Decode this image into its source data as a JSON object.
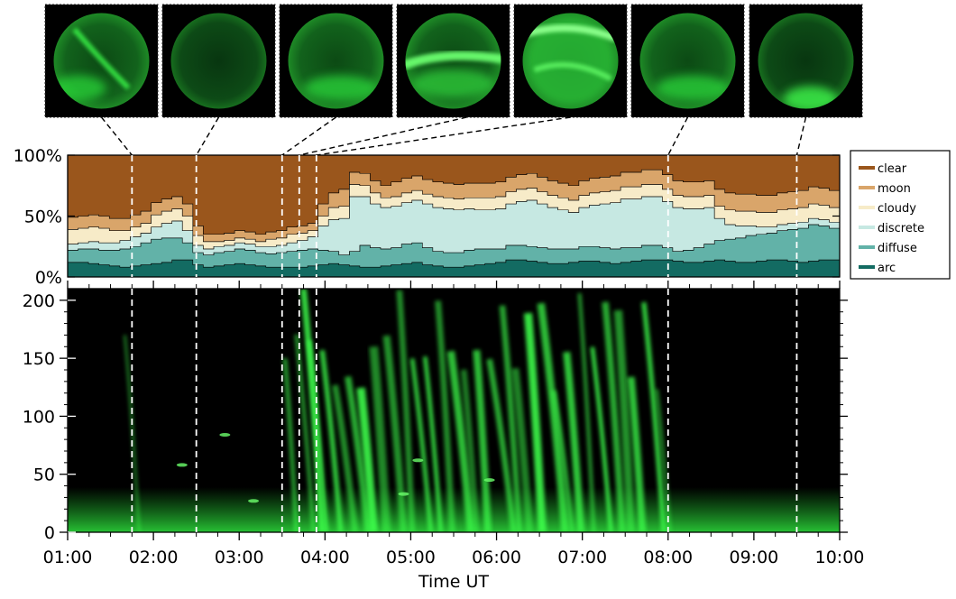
{
  "chart_data": [
    {
      "type": "image",
      "description_items": [
        "all-sky image",
        "all-sky image",
        "all-sky image",
        "all-sky image",
        "all-sky image",
        "all-sky image",
        "all-sky image"
      ],
      "frame_times": [
        "01:45",
        "02:30",
        "03:30",
        "03:42",
        "03:54",
        "08:00",
        "09:30"
      ],
      "colors": {
        "background": "#000000",
        "aurora": "#33ff44"
      }
    },
    {
      "type": "area",
      "stacked": true,
      "normalized_percent": true,
      "ylim": [
        0,
        100
      ],
      "ytick_labels": [
        "100%",
        "50%",
        "0%"
      ],
      "legend_position": "right",
      "legend": [
        "clear",
        "moon",
        "cloudy",
        "discrete",
        "diffuse",
        "arc"
      ],
      "series": [
        {
          "name": "arc",
          "color": "#136b62",
          "values": [
            12,
            12,
            11,
            10,
            9,
            8,
            9,
            10,
            11,
            12,
            14,
            14,
            10,
            8,
            9,
            10,
            11,
            10,
            9,
            8,
            8,
            8,
            8,
            9,
            10,
            11,
            10,
            9,
            8,
            8,
            9,
            10,
            11,
            12,
            10,
            9,
            8,
            8,
            9,
            10,
            11,
            12,
            14,
            14,
            13,
            12,
            11,
            11,
            12,
            13,
            13,
            12,
            11,
            12,
            13,
            14,
            14,
            14,
            13,
            12,
            12,
            13,
            14,
            13,
            12,
            12,
            13,
            14,
            14,
            13,
            12,
            13,
            14,
            14
          ]
        },
        {
          "name": "diffuse",
          "color": "#62b2a8",
          "values": [
            10,
            11,
            12,
            12,
            13,
            15,
            16,
            18,
            20,
            20,
            18,
            14,
            10,
            10,
            11,
            11,
            12,
            12,
            11,
            11,
            12,
            13,
            14,
            14,
            12,
            10,
            8,
            12,
            18,
            16,
            14,
            14,
            16,
            16,
            14,
            12,
            12,
            12,
            13,
            13,
            12,
            11,
            12,
            12,
            12,
            12,
            12,
            12,
            11,
            12,
            12,
            12,
            12,
            12,
            11,
            12,
            12,
            10,
            8,
            10,
            12,
            14,
            16,
            18,
            20,
            22,
            22,
            22,
            24,
            26,
            28,
            30,
            28,
            26
          ]
        },
        {
          "name": "discrete",
          "color": "#c6e8e2",
          "values": [
            5,
            5,
            6,
            6,
            6,
            7,
            8,
            8,
            10,
            12,
            14,
            10,
            6,
            5,
            5,
            5,
            5,
            5,
            5,
            6,
            6,
            7,
            8,
            10,
            20,
            26,
            30,
            45,
            40,
            36,
            34,
            34,
            34,
            35,
            36,
            36,
            36,
            35,
            34,
            32,
            32,
            33,
            34,
            36,
            38,
            36,
            34,
            32,
            30,
            32,
            34,
            36,
            38,
            40,
            40,
            40,
            40,
            38,
            36,
            34,
            32,
            30,
            18,
            12,
            10,
            8,
            6,
            5,
            5,
            5,
            5,
            5,
            5,
            5
          ]
        },
        {
          "name": "cloudy",
          "color": "#f7ebc8",
          "values": [
            12,
            12,
            12,
            12,
            10,
            8,
            8,
            8,
            10,
            10,
            10,
            12,
            8,
            6,
            4,
            4,
            4,
            4,
            4,
            6,
            6,
            7,
            6,
            5,
            8,
            10,
            10,
            10,
            9,
            9,
            8,
            8,
            8,
            8,
            8,
            9,
            9,
            9,
            9,
            10,
            10,
            10,
            10,
            10,
            10,
            10,
            10,
            10,
            10,
            10,
            10,
            10,
            10,
            10,
            10,
            10,
            10,
            10,
            10,
            10,
            10,
            10,
            10,
            12,
            12,
            12,
            12,
            12,
            12,
            12,
            12,
            12,
            12,
            12
          ]
        },
        {
          "name": "moon",
          "color": "#d9a56a",
          "values": [
            10,
            10,
            10,
            10,
            10,
            10,
            10,
            10,
            10,
            10,
            10,
            10,
            8,
            6,
            6,
            6,
            6,
            6,
            6,
            6,
            6,
            6,
            6,
            6,
            10,
            12,
            14,
            10,
            10,
            10,
            10,
            12,
            12,
            12,
            12,
            12,
            12,
            12,
            12,
            12,
            12,
            12,
            12,
            12,
            12,
            12,
            12,
            12,
            12,
            12,
            12,
            12,
            12,
            12,
            12,
            12,
            12,
            12,
            12,
            12,
            12,
            12,
            14,
            14,
            14,
            14,
            14,
            14,
            14,
            14,
            14,
            14,
            14,
            14
          ]
        },
        {
          "name": "clear",
          "color": "#9a561c",
          "values": [
            51,
            50,
            49,
            50,
            52,
            52,
            49,
            46,
            39,
            36,
            34,
            40,
            58,
            65,
            65,
            64,
            62,
            63,
            65,
            63,
            62,
            59,
            58,
            56,
            40,
            31,
            28,
            14,
            15,
            21,
            25,
            22,
            19,
            17,
            20,
            22,
            23,
            24,
            23,
            23,
            23,
            22,
            18,
            16,
            15,
            18,
            21,
            24,
            27,
            23,
            19,
            18,
            17,
            14,
            14,
            12,
            12,
            16,
            21,
            22,
            24,
            21,
            28,
            31,
            32,
            32,
            33,
            33,
            31,
            30,
            29,
            28,
            27,
            29
          ]
        }
      ]
    },
    {
      "type": "heatmap",
      "colormap": "black-to-green",
      "ylim": [
        0,
        210
      ],
      "ytick_labels": [
        "0",
        "50",
        "100",
        "150",
        "200"
      ],
      "xlabel": "Time UT",
      "xtick_labels": [
        "01:00",
        "02:00",
        "03:00",
        "04:00",
        "05:00",
        "06:00",
        "07:00",
        "08:00",
        "09:00",
        "10:00"
      ],
      "marker_times": [
        "01:45",
        "02:30",
        "03:30",
        "03:42",
        "03:54",
        "08:00",
        "09:30"
      ]
    }
  ]
}
